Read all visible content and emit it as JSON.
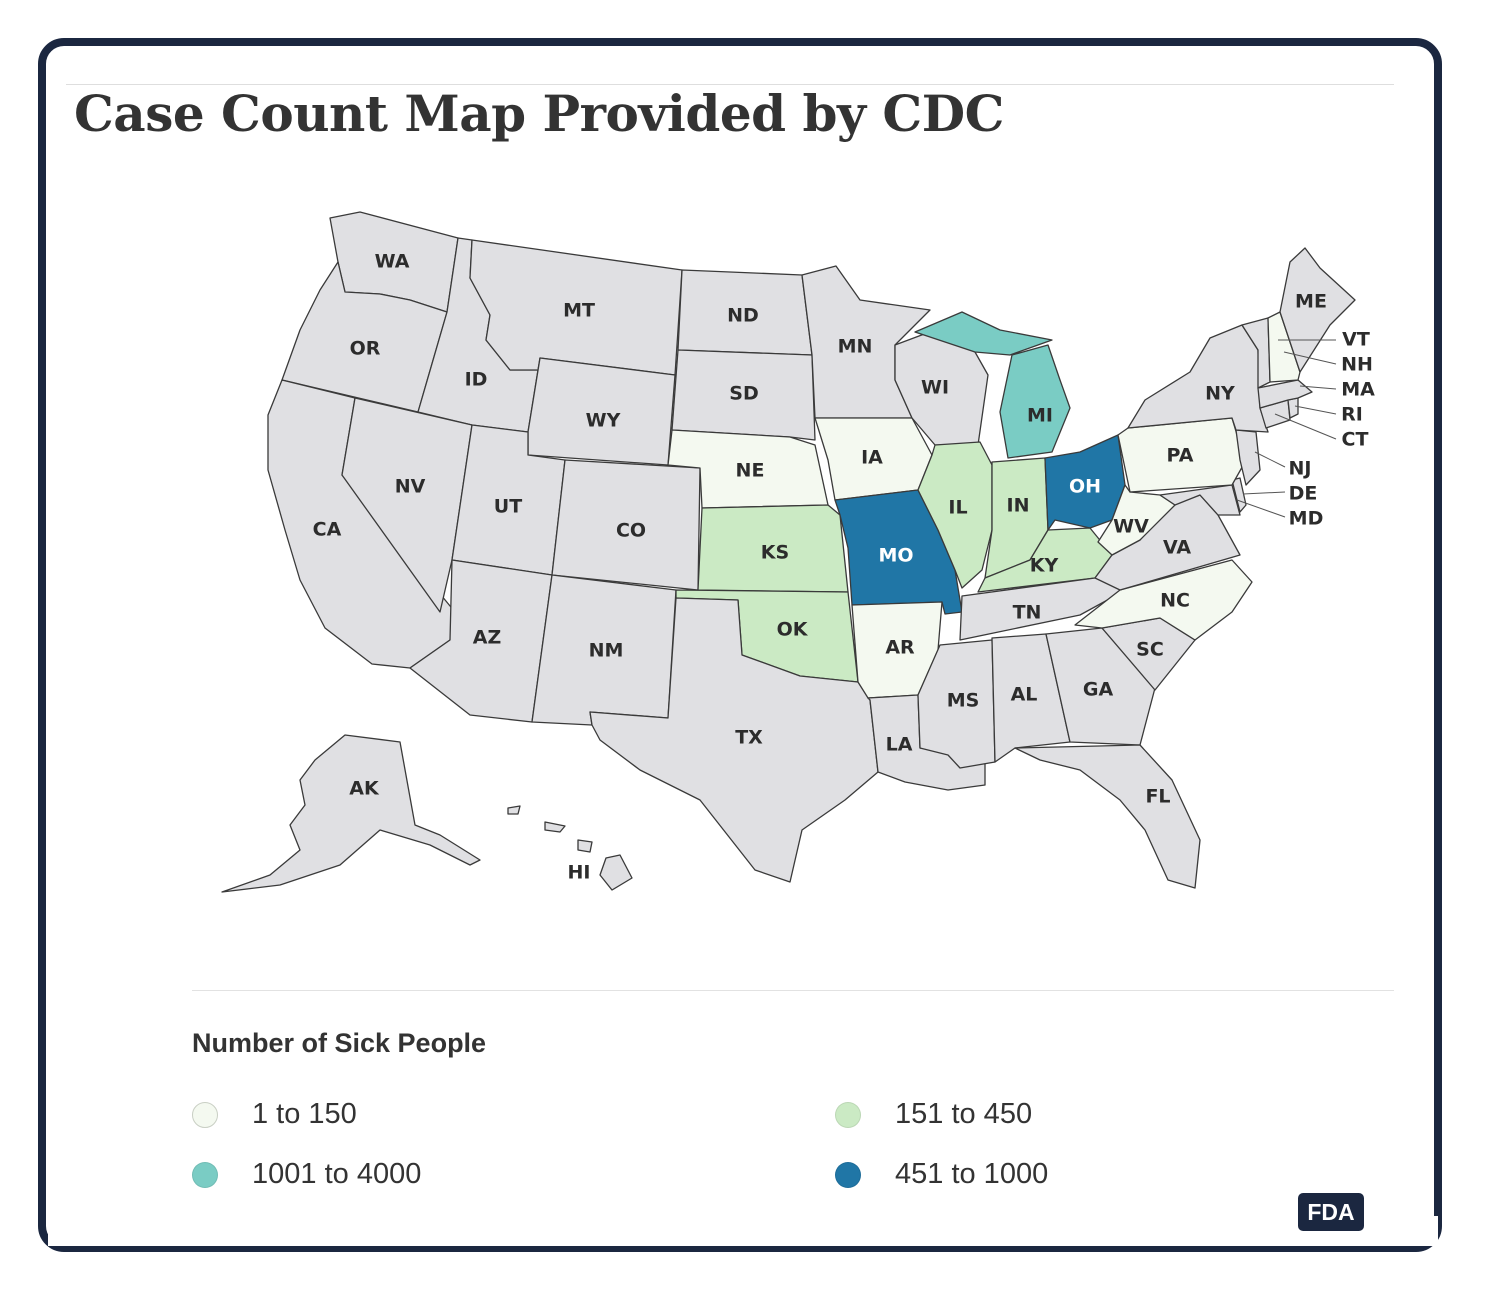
{
  "title": "Case Count Map Provided by CDC",
  "legend": {
    "title": "Number of Sick People",
    "items": [
      {
        "label": "1 to 150",
        "color": "#f4f9f0"
      },
      {
        "label": "151 to 450",
        "color": "#cbeac4"
      },
      {
        "label": "1001 to 4000",
        "color": "#7accc4"
      },
      {
        "label": "451 to 1000",
        "color": "#2076a6"
      }
    ]
  },
  "no_data_color": "#e0e0e3",
  "badge": "FDA",
  "states": {
    "WA": {
      "label": "WA",
      "category": "none"
    },
    "OR": {
      "label": "OR",
      "category": "none"
    },
    "CA": {
      "label": "CA",
      "category": "none"
    },
    "ID": {
      "label": "ID",
      "category": "none"
    },
    "NV": {
      "label": "NV",
      "category": "none"
    },
    "MT": {
      "label": "MT",
      "category": "none"
    },
    "WY": {
      "label": "WY",
      "category": "none"
    },
    "UT": {
      "label": "UT",
      "category": "none"
    },
    "CO": {
      "label": "CO",
      "category": "none"
    },
    "AZ": {
      "label": "AZ",
      "category": "none"
    },
    "NM": {
      "label": "NM",
      "category": "none"
    },
    "ND": {
      "label": "ND",
      "category": "none"
    },
    "SD": {
      "label": "SD",
      "category": "none"
    },
    "NE": {
      "label": "NE",
      "category": "1 to 150"
    },
    "KS": {
      "label": "KS",
      "category": "151 to 450"
    },
    "OK": {
      "label": "OK",
      "category": "151 to 450"
    },
    "TX": {
      "label": "TX",
      "category": "none"
    },
    "MN": {
      "label": "MN",
      "category": "none"
    },
    "IA": {
      "label": "IA",
      "category": "1 to 150"
    },
    "MO": {
      "label": "MO",
      "category": "451 to 1000"
    },
    "AR": {
      "label": "AR",
      "category": "1 to 150"
    },
    "LA": {
      "label": "LA",
      "category": "none"
    },
    "WI": {
      "label": "WI",
      "category": "none"
    },
    "IL": {
      "label": "IL",
      "category": "151 to 450"
    },
    "MI": {
      "label": "MI",
      "category": "1001 to 4000"
    },
    "IN": {
      "label": "IN",
      "category": "151 to 450"
    },
    "OH": {
      "label": "OH",
      "category": "451 to 1000"
    },
    "KY": {
      "label": "KY",
      "category": "151 to 450"
    },
    "TN": {
      "label": "TN",
      "category": "none"
    },
    "MS": {
      "label": "MS",
      "category": "none"
    },
    "AL": {
      "label": "AL",
      "category": "none"
    },
    "GA": {
      "label": "GA",
      "category": "none"
    },
    "FL": {
      "label": "FL",
      "category": "none"
    },
    "SC": {
      "label": "SC",
      "category": "none"
    },
    "NC": {
      "label": "NC",
      "category": "1 to 150"
    },
    "VA": {
      "label": "VA",
      "category": "none"
    },
    "WV": {
      "label": "WV",
      "category": "1 to 150"
    },
    "PA": {
      "label": "PA",
      "category": "1 to 150"
    },
    "NY": {
      "label": "NY",
      "category": "none"
    },
    "ME": {
      "label": "ME",
      "category": "none"
    },
    "VT": {
      "label": "VT",
      "category": "none"
    },
    "NH": {
      "label": "NH",
      "category": "1 to 150"
    },
    "MA": {
      "label": "MA",
      "category": "none"
    },
    "RI": {
      "label": "RI",
      "category": "none"
    },
    "CT": {
      "label": "CT",
      "category": "none"
    },
    "NJ": {
      "label": "NJ",
      "category": "none"
    },
    "DE": {
      "label": "DE",
      "category": "none"
    },
    "MD": {
      "label": "MD",
      "category": "none"
    },
    "AK": {
      "label": "AK",
      "category": "none"
    },
    "HI": {
      "label": "HI",
      "category": "none"
    }
  }
}
